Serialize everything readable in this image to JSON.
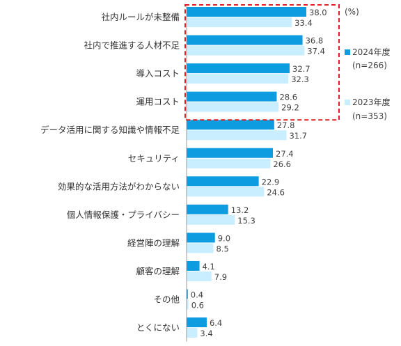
{
  "chart_data": {
    "type": "bar",
    "orientation": "horizontal",
    "unit": "(%)",
    "xlim": [
      0,
      45
    ],
    "grid": false,
    "legend_position": "right",
    "highlight_top_n": 4,
    "categories": [
      "社内ルールが未整備",
      "社内で推進する人材不足",
      "導入コスト",
      "運用コスト",
      "データ活用に関する知識や情報不足",
      "セキュリティ",
      "効果的な活用方法がわからない",
      "個人情報保護・プライバシー",
      "経営陣の理解",
      "顧客の理解",
      "その他",
      "とくにない"
    ],
    "series": [
      {
        "name": "2024年度",
        "note": "(n=266)",
        "color": "#0e9ce0",
        "values": [
          38.0,
          36.8,
          32.7,
          28.6,
          27.8,
          27.4,
          22.9,
          13.2,
          9.0,
          4.1,
          0.4,
          6.4
        ]
      },
      {
        "name": "2023年度",
        "note": "(n=353)",
        "color": "#c9eeff",
        "values": [
          33.4,
          37.4,
          32.3,
          29.2,
          31.7,
          26.6,
          24.6,
          15.3,
          8.5,
          7.9,
          0.6,
          3.4
        ]
      }
    ],
    "highlight_color": "#e02020",
    "label_color": "#404040"
  }
}
